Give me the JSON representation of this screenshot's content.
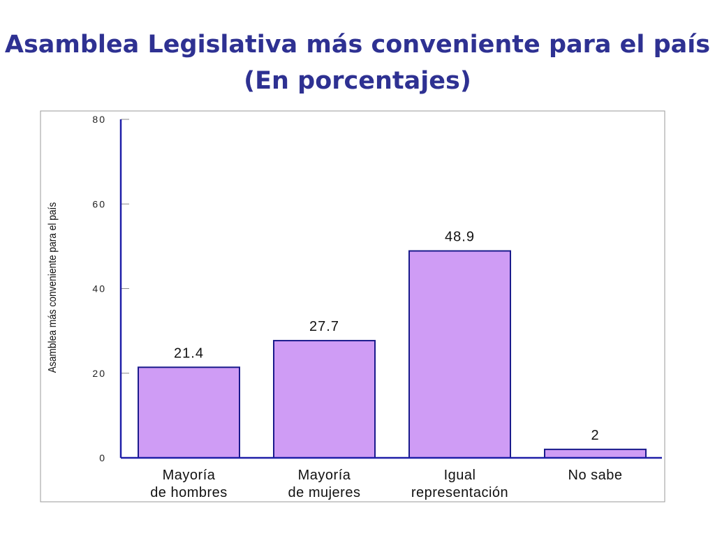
{
  "slide": {
    "title_line1": "Asamblea Legislativa más conveniente para el país",
    "title_line2": "(En porcentajes)"
  },
  "colors": {
    "title": "#2e3192",
    "axis": "#1f1fa8",
    "bar_fill": "#cf9cf5",
    "bar_stroke": "#1a1a8c",
    "frame": "#9a9a9a"
  },
  "chart_data": {
    "type": "bar",
    "categories": [
      [
        "Mayoría",
        "de hombres"
      ],
      [
        "Mayoría",
        "de mujeres"
      ],
      [
        "Igual",
        "representación"
      ],
      [
        "No sabe"
      ]
    ],
    "values": [
      21.4,
      27.7,
      48.9,
      2
    ],
    "data_labels": [
      "21.4",
      "27.7",
      "48.9",
      "2"
    ],
    "title": "Asamblea Legislativa más conveniente para el país",
    "xlabel": "",
    "ylabel": "Asamblea más conveniente para el país",
    "ylim": [
      0,
      80
    ],
    "yticks": [
      0,
      20,
      40,
      60,
      80
    ],
    "grid": false,
    "legend": "none"
  }
}
